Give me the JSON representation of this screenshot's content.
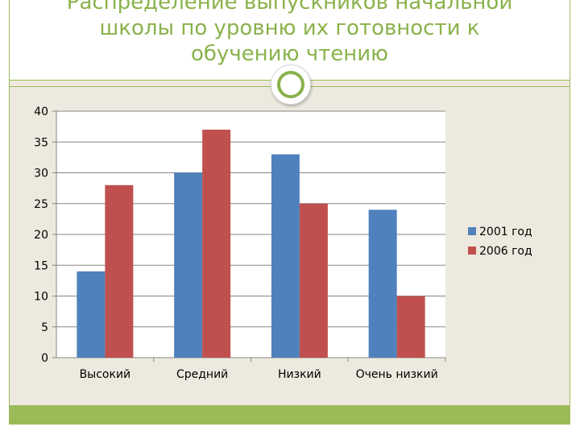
{
  "slide": {
    "title": "Распределение выпускников начальной\nшколы по уровню их готовности к\nобучению чтению"
  },
  "colors": {
    "accent_green": "#9bbb59",
    "title_green": "#8ab24b",
    "series_2001": "#4f81bd",
    "series_2006": "#c0504d"
  },
  "chart_data": {
    "type": "bar",
    "title": "",
    "xlabel": "",
    "ylabel": "",
    "categories": [
      "Высокий",
      "Средний",
      "Низкий",
      "Очень низкий"
    ],
    "series": [
      {
        "name": "2001 год",
        "values": [
          14,
          30,
          33,
          24
        ],
        "color": "#4f81bd"
      },
      {
        "name": "2006 год",
        "values": [
          28,
          37,
          25,
          10
        ],
        "color": "#c0504d"
      }
    ],
    "ylim": [
      0,
      40
    ],
    "yticks": [
      0,
      5,
      10,
      15,
      20,
      25,
      30,
      35,
      40
    ],
    "grid": true,
    "legend": "right"
  }
}
